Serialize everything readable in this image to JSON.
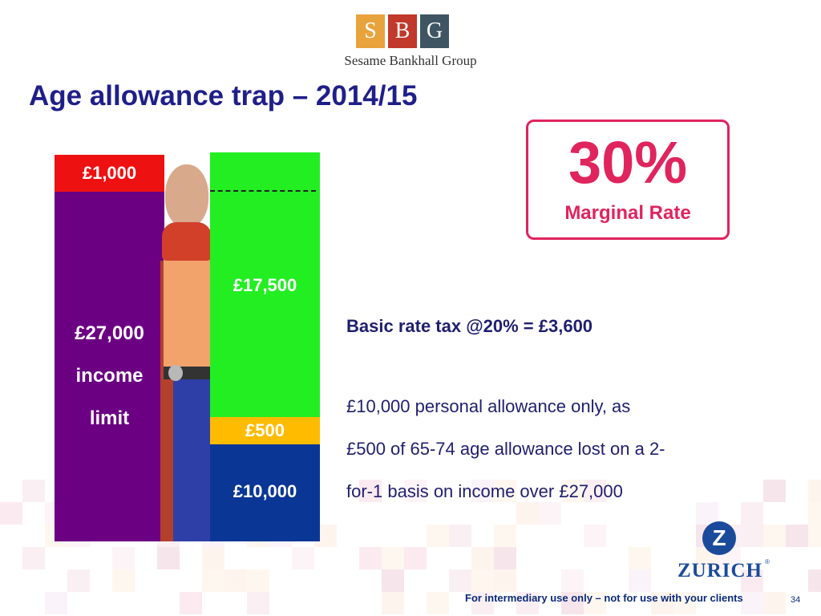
{
  "brand": {
    "letters": [
      "S",
      "B",
      "G"
    ],
    "letter_colors": [
      "#e8a33c",
      "#c0392b",
      "#3f5563"
    ],
    "name": "Sesame Bankhall Group"
  },
  "title": "Age allowance trap – 2014/15",
  "rate_box": {
    "value": "30%",
    "label": "Marginal Rate",
    "color": "#e0245e"
  },
  "left_bar": {
    "segments": [
      {
        "label": "£1,000",
        "color": "#ee1111"
      },
      {
        "label_lines": [
          "£27,000",
          "income",
          "limit"
        ],
        "color": "#6b0082"
      }
    ]
  },
  "right_bar": {
    "segments": [
      {
        "label": "£17,500",
        "color": "#22ee22"
      },
      {
        "label": "£500",
        "color": "#ffbb00"
      },
      {
        "label": "£10,000",
        "color": "#0a3696"
      }
    ]
  },
  "text": {
    "basic_rate": "Basic rate tax @20% = £3,600",
    "explanation_lines": [
      "£10,000 personal allowance only, as",
      "£500 of 65-74 age allowance lost on a 2-",
      "for-1 basis on income over £27,000"
    ]
  },
  "zurich": {
    "letter": "Z",
    "name": "ZURICH",
    "reg": "®"
  },
  "footer": {
    "note": "For intermediary use only – not for use with your clients",
    "page": "34"
  }
}
